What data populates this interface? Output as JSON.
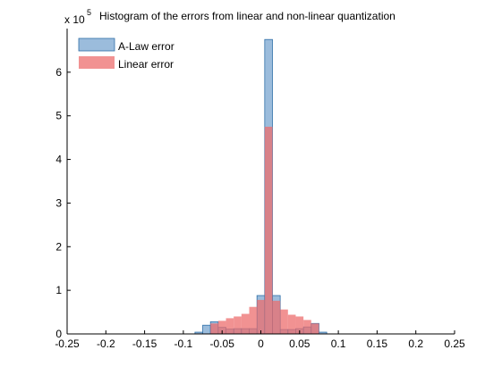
{
  "chart_data": {
    "type": "bar",
    "title": "Histogram of the errors from linear and non-linear quantization",
    "xlabel": "",
    "ylabel": "",
    "xlim": [
      -0.25,
      0.25
    ],
    "ylim": [
      0,
      7
    ],
    "y_exponent_label": "x 10",
    "y_exponent_power": "5",
    "y_multiplier": 100000,
    "x_ticks": [
      -0.25,
      -0.2,
      -0.15,
      -0.1,
      -0.05,
      0,
      0.05,
      0.1,
      0.15,
      0.2,
      0.25
    ],
    "x_tick_labels": [
      "-0.25",
      "-0.2",
      "-0.15",
      "-0.1",
      "-0.05",
      "0",
      "0.05",
      "0.1",
      "0.15",
      "0.2",
      "0.25"
    ],
    "y_ticks": [
      0,
      1,
      2,
      3,
      4,
      5,
      6
    ],
    "y_tick_labels": [
      "0",
      "1",
      "2",
      "3",
      "4",
      "5",
      "6"
    ],
    "grid": false,
    "legend_position": "top-left",
    "bin_edges": [
      -0.085,
      -0.075,
      -0.065,
      -0.055,
      -0.045,
      -0.035,
      -0.025,
      -0.015,
      -0.005,
      0.005,
      0.015,
      0.025,
      0.035,
      0.045,
      0.055,
      0.065,
      0.075,
      0.085
    ],
    "series": [
      {
        "name": "A-Law error",
        "color": "#7aa6d0",
        "edge_color": "#2f6fa8",
        "values": [
          0.04,
          0.2,
          0.28,
          0.15,
          0.11,
          0.12,
          0.12,
          0.12,
          0.88,
          6.75,
          0.88,
          0.1,
          0.1,
          0.12,
          0.16,
          0.24,
          0.04
        ]
      },
      {
        "name": "Linear error",
        "color": "#ec6e6e",
        "values": [
          0.0,
          0.0,
          0.24,
          0.3,
          0.36,
          0.4,
          0.46,
          0.62,
          0.78,
          4.75,
          0.76,
          0.56,
          0.44,
          0.4,
          0.32,
          0.24,
          0.0
        ]
      }
    ]
  }
}
